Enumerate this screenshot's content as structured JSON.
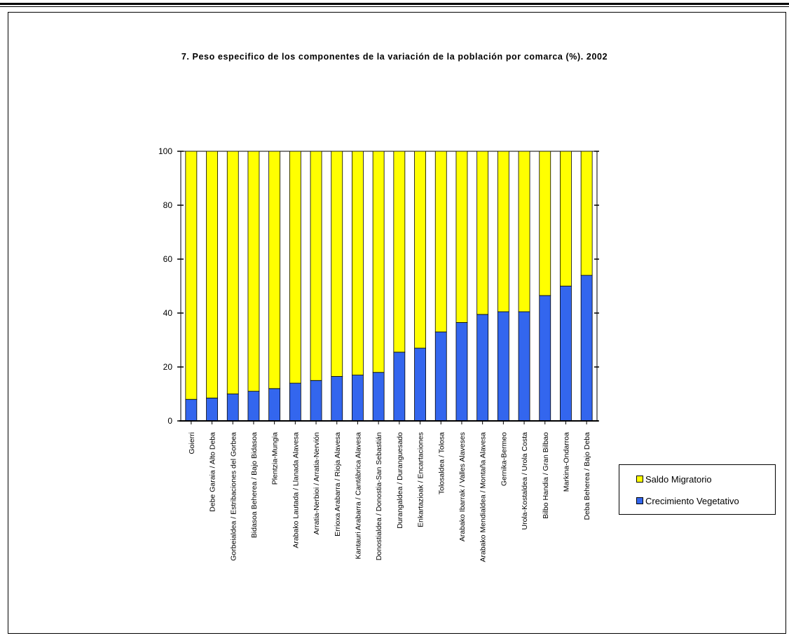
{
  "chart_data": {
    "type": "bar",
    "stacked": true,
    "title": "7. Peso especifico de los componentes de la variación de la población por comarca (%). 2002",
    "xlabel": "",
    "ylabel": "",
    "ylim": [
      0,
      100
    ],
    "yticks": [
      0,
      20,
      40,
      60,
      80,
      100
    ],
    "grid": false,
    "legend_position": "right",
    "categories": [
      "Goierri",
      "Debe Garaia / Alto Deba",
      "Gorbeialdea / Estribaciones del Gorbea",
      "Bidasoa Beherea / Bajo Bidasoa",
      "Plentzia-Mungia",
      "Arabako Lautada / Llanada Alavesa",
      "Arratia-Nerbioi / Arratia-Nervión",
      "Errioxa Arabarra / Rioja Alavesa",
      "Kantauri Arabarra / Cantábrica Alavesa",
      "Donostialdea / Donostia-San Sebastián",
      "Durangaldea / Duranguesado",
      "Enkartazioak / Encartaciones",
      "Tolosaldea / Tolosa",
      "Arabako Ibarrak / Valles Alaveses",
      "Arabako Mendialdea / Montaña Alavesa",
      "Gernika-Bermeo",
      "Urola-Kostaldea / Urola Costa",
      "Bilbo Handia / Gran Bilbao",
      "Markina-Ondarroa",
      "Deba Beherea / Bajo Deba"
    ],
    "series": [
      {
        "name": "Crecimiento Vegetativo",
        "color": "#3366ee",
        "values": [
          8,
          8.5,
          10,
          11,
          12,
          14,
          15,
          16.5,
          17,
          18,
          25.5,
          27,
          33,
          36.5,
          39.5,
          40.5,
          40.5,
          46.5,
          50,
          54
        ]
      },
      {
        "name": "Saldo Migratorio",
        "color": "#ffff00",
        "values": [
          92,
          91.5,
          90,
          89,
          88,
          86,
          85,
          83.5,
          83,
          82,
          74.5,
          73,
          67,
          63.5,
          60.5,
          59.5,
          59.5,
          53.5,
          50,
          46
        ]
      }
    ]
  },
  "legend": {
    "items": [
      {
        "label": "Saldo Migratorio",
        "color": "#ffff00"
      },
      {
        "label": "Crecimiento Vegetativo",
        "color": "#3366ee"
      }
    ]
  }
}
